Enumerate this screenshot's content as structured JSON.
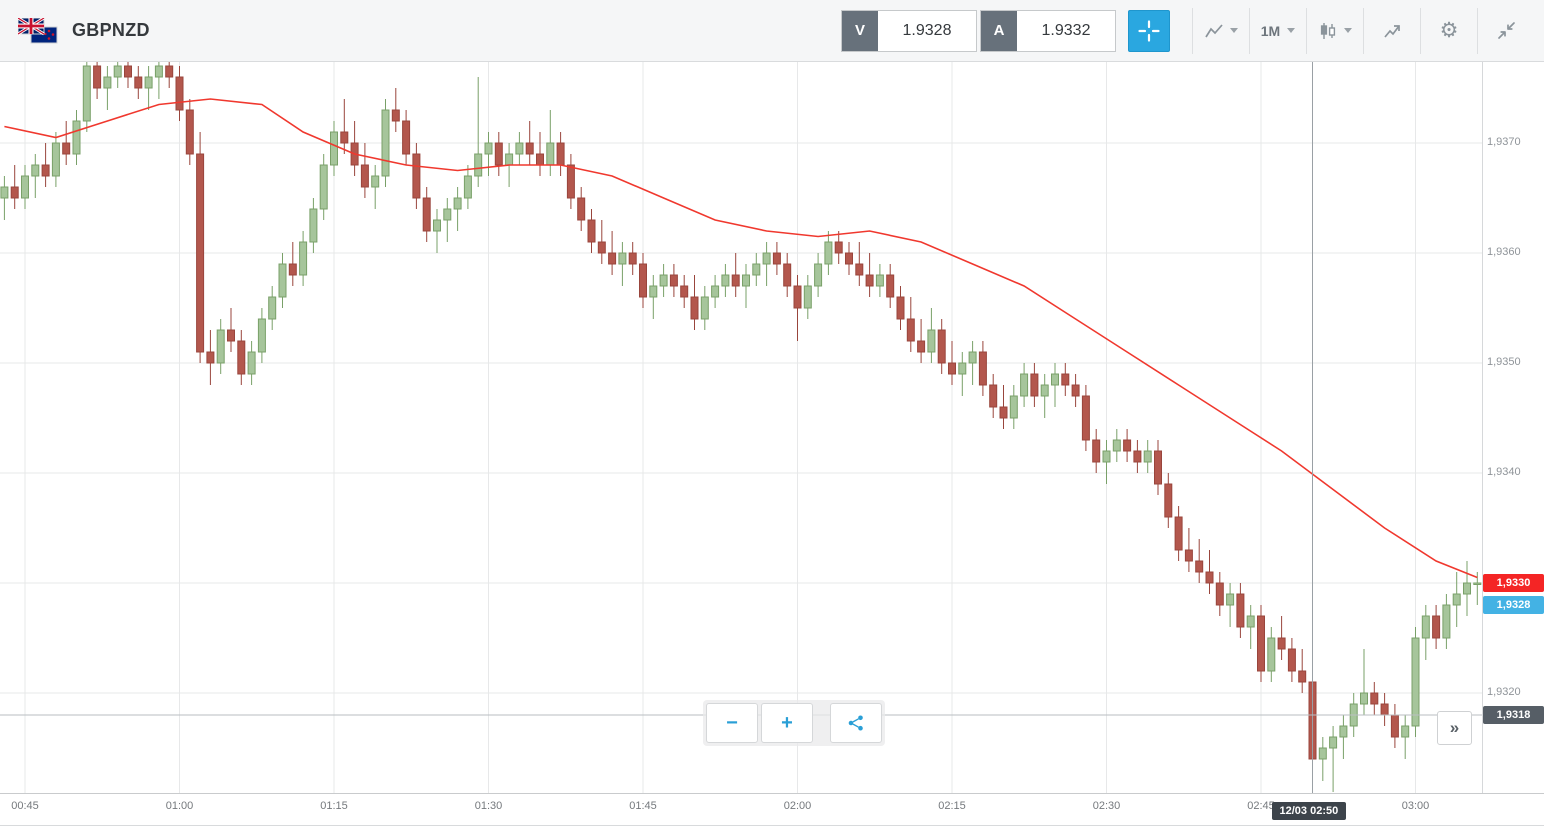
{
  "header": {
    "symbol": "GBPNZD",
    "sell_label": "V",
    "sell_price": "1.9328",
    "buy_label": "A",
    "buy_price": "1.9332",
    "timeframe": "1M",
    "settings_glyph": "⚙"
  },
  "controls": {
    "zoom_out_label": "−",
    "zoom_in_label": "+",
    "jump_latest_label": "»"
  },
  "chart_data": {
    "type": "candlestick",
    "symbol": "GBPNZD",
    "interval": "1M",
    "start_time": "00:43",
    "interval_minutes": 1,
    "grid": true,
    "legend": "none",
    "time_axis": [
      "00:45",
      "01:00",
      "01:15",
      "01:30",
      "01:45",
      "02:00",
      "02:15",
      "02:30",
      "02:45",
      "03:00"
    ],
    "price_axis": [
      {
        "value": 1.937,
        "label": "1,9370"
      },
      {
        "value": 1.936,
        "label": "1,9360"
      },
      {
        "value": 1.935,
        "label": "1,9350"
      },
      {
        "value": 1.934,
        "label": "1,9340"
      },
      {
        "value": 1.933,
        "label": "1,9330"
      },
      {
        "value": 1.932,
        "label": "1,9320"
      }
    ],
    "ylim": [
      1.9311,
      1.9377
    ],
    "candles": [
      [
        1.9365,
        1.9367,
        1.9363,
        1.9366
      ],
      [
        1.9366,
        1.9368,
        1.9364,
        1.9365
      ],
      [
        1.9365,
        1.9368,
        1.9364,
        1.9367
      ],
      [
        1.9367,
        1.9369,
        1.9365,
        1.9368
      ],
      [
        1.9368,
        1.937,
        1.9366,
        1.9367
      ],
      [
        1.9367,
        1.9371,
        1.9366,
        1.937
      ],
      [
        1.937,
        1.9372,
        1.9368,
        1.9369
      ],
      [
        1.9369,
        1.9373,
        1.9368,
        1.9372
      ],
      [
        1.9372,
        1.9378,
        1.9371,
        1.9377
      ],
      [
        1.9377,
        1.9378,
        1.9374,
        1.9375
      ],
      [
        1.9375,
        1.9377,
        1.9373,
        1.9376
      ],
      [
        1.9376,
        1.9378,
        1.9375,
        1.9377
      ],
      [
        1.9377,
        1.9378,
        1.9375,
        1.9376
      ],
      [
        1.9376,
        1.9377,
        1.9374,
        1.9375
      ],
      [
        1.9375,
        1.9377,
        1.9373,
        1.9376
      ],
      [
        1.9376,
        1.9378,
        1.9374,
        1.9377
      ],
      [
        1.9377,
        1.9378,
        1.9375,
        1.9376
      ],
      [
        1.9376,
        1.9377,
        1.9372,
        1.9373
      ],
      [
        1.9373,
        1.9374,
        1.9368,
        1.9369
      ],
      [
        1.9369,
        1.9371,
        1.935,
        1.9351
      ],
      [
        1.9351,
        1.9353,
        1.9348,
        1.935
      ],
      [
        1.935,
        1.9354,
        1.9349,
        1.9353
      ],
      [
        1.9353,
        1.9355,
        1.9351,
        1.9352
      ],
      [
        1.9352,
        1.9353,
        1.9348,
        1.9349
      ],
      [
        1.9349,
        1.9352,
        1.9348,
        1.9351
      ],
      [
        1.9351,
        1.9355,
        1.935,
        1.9354
      ],
      [
        1.9354,
        1.9357,
        1.9353,
        1.9356
      ],
      [
        1.9356,
        1.936,
        1.9355,
        1.9359
      ],
      [
        1.9359,
        1.9361,
        1.9357,
        1.9358
      ],
      [
        1.9358,
        1.9362,
        1.9357,
        1.9361
      ],
      [
        1.9361,
        1.9365,
        1.936,
        1.9364
      ],
      [
        1.9364,
        1.9369,
        1.9363,
        1.9368
      ],
      [
        1.9368,
        1.9372,
        1.9367,
        1.9371
      ],
      [
        1.9371,
        1.9374,
        1.9369,
        1.937
      ],
      [
        1.937,
        1.9372,
        1.9367,
        1.9368
      ],
      [
        1.9368,
        1.937,
        1.9365,
        1.9366
      ],
      [
        1.9366,
        1.9368,
        1.9364,
        1.9367
      ],
      [
        1.9367,
        1.9374,
        1.9366,
        1.9373
      ],
      [
        1.9373,
        1.9375,
        1.9371,
        1.9372
      ],
      [
        1.9372,
        1.9373,
        1.9368,
        1.9369
      ],
      [
        1.9369,
        1.937,
        1.9364,
        1.9365
      ],
      [
        1.9365,
        1.9366,
        1.9361,
        1.9362
      ],
      [
        1.9362,
        1.9364,
        1.936,
        1.9363
      ],
      [
        1.9363,
        1.9365,
        1.9361,
        1.9364
      ],
      [
        1.9364,
        1.9366,
        1.9362,
        1.9365
      ],
      [
        1.9365,
        1.9368,
        1.9364,
        1.9367
      ],
      [
        1.9367,
        1.9376,
        1.9366,
        1.9369
      ],
      [
        1.9369,
        1.9371,
        1.9367,
        1.937
      ],
      [
        1.937,
        1.9371,
        1.9367,
        1.9368
      ],
      [
        1.9368,
        1.937,
        1.9366,
        1.9369
      ],
      [
        1.9369,
        1.9371,
        1.9368,
        1.937
      ],
      [
        1.937,
        1.9372,
        1.9368,
        1.9369
      ],
      [
        1.9369,
        1.9371,
        1.9367,
        1.9368
      ],
      [
        1.9368,
        1.9373,
        1.9367,
        1.937
      ],
      [
        1.937,
        1.9371,
        1.9367,
        1.9368
      ],
      [
        1.9368,
        1.9369,
        1.9364,
        1.9365
      ],
      [
        1.9365,
        1.9366,
        1.9362,
        1.9363
      ],
      [
        1.9363,
        1.9364,
        1.936,
        1.9361
      ],
      [
        1.9361,
        1.9363,
        1.9359,
        1.936
      ],
      [
        1.936,
        1.9362,
        1.9358,
        1.9359
      ],
      [
        1.9359,
        1.9361,
        1.9357,
        1.936
      ],
      [
        1.936,
        1.9361,
        1.9358,
        1.9359
      ],
      [
        1.9359,
        1.936,
        1.9355,
        1.9356
      ],
      [
        1.9356,
        1.9358,
        1.9354,
        1.9357
      ],
      [
        1.9357,
        1.9359,
        1.9356,
        1.9358
      ],
      [
        1.9358,
        1.9359,
        1.9356,
        1.9357
      ],
      [
        1.9357,
        1.9358,
        1.9355,
        1.9356
      ],
      [
        1.9356,
        1.9358,
        1.9353,
        1.9354
      ],
      [
        1.9354,
        1.9357,
        1.9353,
        1.9356
      ],
      [
        1.9356,
        1.9358,
        1.9355,
        1.9357
      ],
      [
        1.9357,
        1.9359,
        1.9356,
        1.9358
      ],
      [
        1.9358,
        1.936,
        1.9356,
        1.9357
      ],
      [
        1.9357,
        1.9359,
        1.9355,
        1.9358
      ],
      [
        1.9358,
        1.936,
        1.9357,
        1.9359
      ],
      [
        1.9359,
        1.9361,
        1.9357,
        1.936
      ],
      [
        1.936,
        1.9361,
        1.9358,
        1.9359
      ],
      [
        1.9359,
        1.936,
        1.9356,
        1.9357
      ],
      [
        1.9357,
        1.9358,
        1.9352,
        1.9355
      ],
      [
        1.9355,
        1.9358,
        1.9354,
        1.9357
      ],
      [
        1.9357,
        1.936,
        1.9356,
        1.9359
      ],
      [
        1.9359,
        1.9362,
        1.9358,
        1.9361
      ],
      [
        1.9361,
        1.9362,
        1.9359,
        1.936
      ],
      [
        1.936,
        1.9361,
        1.9358,
        1.9359
      ],
      [
        1.9359,
        1.9361,
        1.9357,
        1.9358
      ],
      [
        1.9358,
        1.936,
        1.9356,
        1.9357
      ],
      [
        1.9357,
        1.9359,
        1.9356,
        1.9358
      ],
      [
        1.9358,
        1.9359,
        1.9355,
        1.9356
      ],
      [
        1.9356,
        1.9357,
        1.9353,
        1.9354
      ],
      [
        1.9354,
        1.9356,
        1.9351,
        1.9352
      ],
      [
        1.9352,
        1.9354,
        1.935,
        1.9351
      ],
      [
        1.9351,
        1.9355,
        1.935,
        1.9353
      ],
      [
        1.9353,
        1.9354,
        1.9349,
        1.935
      ],
      [
        1.935,
        1.9352,
        1.9348,
        1.9349
      ],
      [
        1.9349,
        1.9351,
        1.9347,
        1.935
      ],
      [
        1.935,
        1.9352,
        1.9348,
        1.9351
      ],
      [
        1.9351,
        1.9352,
        1.9347,
        1.9348
      ],
      [
        1.9348,
        1.9349,
        1.9345,
        1.9346
      ],
      [
        1.9346,
        1.9348,
        1.9344,
        1.9345
      ],
      [
        1.9345,
        1.9348,
        1.9344,
        1.9347
      ],
      [
        1.9347,
        1.935,
        1.9346,
        1.9349
      ],
      [
        1.9349,
        1.935,
        1.9346,
        1.9347
      ],
      [
        1.9347,
        1.9349,
        1.9345,
        1.9348
      ],
      [
        1.9348,
        1.935,
        1.9346,
        1.9349
      ],
      [
        1.9349,
        1.935,
        1.9347,
        1.9348
      ],
      [
        1.9348,
        1.9349,
        1.9346,
        1.9347
      ],
      [
        1.9347,
        1.9348,
        1.9342,
        1.9343
      ],
      [
        1.9343,
        1.9344,
        1.934,
        1.9341
      ],
      [
        1.9341,
        1.9343,
        1.9339,
        1.9342
      ],
      [
        1.9342,
        1.9344,
        1.9341,
        1.9343
      ],
      [
        1.9343,
        1.9344,
        1.9341,
        1.9342
      ],
      [
        1.9342,
        1.9343,
        1.934,
        1.9341
      ],
      [
        1.9341,
        1.9343,
        1.934,
        1.9342
      ],
      [
        1.9342,
        1.9343,
        1.9338,
        1.9339
      ],
      [
        1.9339,
        1.934,
        1.9335,
        1.9336
      ],
      [
        1.9336,
        1.9337,
        1.9332,
        1.9333
      ],
      [
        1.9333,
        1.9335,
        1.9331,
        1.9332
      ],
      [
        1.9332,
        1.9334,
        1.933,
        1.9331
      ],
      [
        1.9331,
        1.9333,
        1.9329,
        1.933
      ],
      [
        1.933,
        1.9331,
        1.9327,
        1.9328
      ],
      [
        1.9328,
        1.933,
        1.9326,
        1.9329
      ],
      [
        1.9329,
        1.933,
        1.9325,
        1.9326
      ],
      [
        1.9326,
        1.9328,
        1.9324,
        1.9327
      ],
      [
        1.9327,
        1.9328,
        1.9321,
        1.9322
      ],
      [
        1.9322,
        1.9326,
        1.9321,
        1.9325
      ],
      [
        1.9325,
        1.9327,
        1.9323,
        1.9324
      ],
      [
        1.9324,
        1.9325,
        1.9321,
        1.9322
      ],
      [
        1.9322,
        1.9324,
        1.932,
        1.9321
      ],
      [
        1.9321,
        1.9322,
        1.9313,
        1.9314
      ],
      [
        1.9314,
        1.9316,
        1.9312,
        1.9315
      ],
      [
        1.9315,
        1.9317,
        1.9311,
        1.9316
      ],
      [
        1.9316,
        1.9318,
        1.9314,
        1.9317
      ],
      [
        1.9317,
        1.932,
        1.9316,
        1.9319
      ],
      [
        1.9319,
        1.9324,
        1.9318,
        1.932
      ],
      [
        1.932,
        1.9321,
        1.9318,
        1.9319
      ],
      [
        1.9319,
        1.932,
        1.9317,
        1.9318
      ],
      [
        1.9318,
        1.9319,
        1.9315,
        1.9316
      ],
      [
        1.9316,
        1.9318,
        1.9314,
        1.9317
      ],
      [
        1.9317,
        1.9326,
        1.9316,
        1.9325
      ],
      [
        1.9325,
        1.9328,
        1.9323,
        1.9327
      ],
      [
        1.9327,
        1.9328,
        1.9324,
        1.9325
      ],
      [
        1.9325,
        1.9329,
        1.9324,
        1.9328
      ],
      [
        1.9328,
        1.9331,
        1.9326,
        1.9329
      ],
      [
        1.9329,
        1.9332,
        1.9327,
        1.933
      ],
      [
        1.933,
        1.9331,
        1.9328,
        1.933
      ]
    ],
    "ma_points": [
      [
        0,
        1.93715
      ],
      [
        5,
        1.93705
      ],
      [
        10,
        1.9372
      ],
      [
        15,
        1.93735
      ],
      [
        20,
        1.9374
      ],
      [
        25,
        1.93735
      ],
      [
        29,
        1.9371
      ],
      [
        34,
        1.9369
      ],
      [
        39,
        1.9368
      ],
      [
        44,
        1.93675
      ],
      [
        49,
        1.9368
      ],
      [
        54,
        1.9368
      ],
      [
        59,
        1.9367
      ],
      [
        64,
        1.9365
      ],
      [
        69,
        1.9363
      ],
      [
        74,
        1.9362
      ],
      [
        79,
        1.93615
      ],
      [
        84,
        1.9362
      ],
      [
        89,
        1.9361
      ],
      [
        94,
        1.9359
      ],
      [
        99,
        1.9357
      ],
      [
        104,
        1.9354
      ],
      [
        109,
        1.9351
      ],
      [
        114,
        1.9348
      ],
      [
        119,
        1.9345
      ],
      [
        124,
        1.9342
      ],
      [
        129,
        1.93385
      ],
      [
        134,
        1.9335
      ],
      [
        139,
        1.9332
      ],
      [
        143,
        1.93305
      ]
    ],
    "crosshair": {
      "time": "02:50",
      "price": 1.9318,
      "time_label": "12/03 02:50",
      "price_label": "1,9318"
    },
    "last_price": {
      "value": 1.933,
      "label": "1,9330"
    },
    "bid_marker": {
      "value": 1.9328,
      "label": "1,9328"
    },
    "colors": {
      "up_fill": "#a6c59b",
      "up_stroke": "#79a068",
      "down_fill": "#b3574d",
      "down_stroke": "#99453c",
      "ma": "#f0382e",
      "grid": "#e7e8e9",
      "crosshair_v": "#9aa0a5",
      "crosshair_h": "#b9bec2",
      "last_badge_bg": "#f42525",
      "bid_badge_bg": "#43b2e4",
      "crosshair_badge_bg": "#565e66",
      "time_badge_bg": "#3d444b"
    }
  }
}
